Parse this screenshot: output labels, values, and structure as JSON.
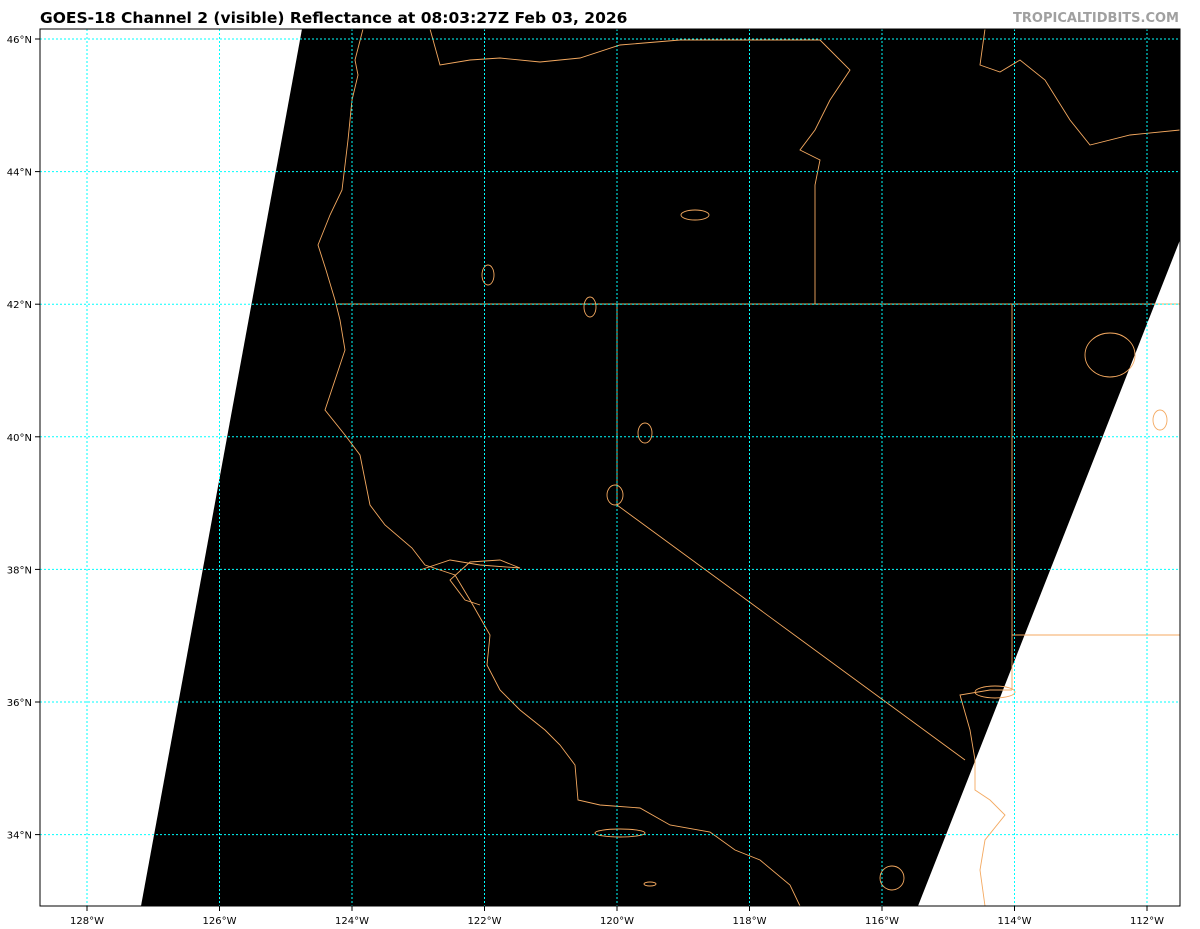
{
  "title": "GOES-18 Channel 2 (visible) Reflectance at 08:03:27Z Feb 03, 2026",
  "credit": "TROPICALTIDBITS.COM",
  "map": {
    "lon_ticks": [
      {
        "value": -128,
        "label": "128°W"
      },
      {
        "value": -126,
        "label": "126°W"
      },
      {
        "value": -124,
        "label": "124°W"
      },
      {
        "value": -122,
        "label": "122°W"
      },
      {
        "value": -120,
        "label": "120°W"
      },
      {
        "value": -118,
        "label": "118°W"
      },
      {
        "value": -116,
        "label": "116°W"
      },
      {
        "value": -114,
        "label": "114°W"
      },
      {
        "value": -112,
        "label": "112°W"
      }
    ],
    "lat_ticks": [
      {
        "value": 46,
        "label": "46°N"
      },
      {
        "value": 44,
        "label": "44°N"
      },
      {
        "value": 42,
        "label": "42°N"
      },
      {
        "value": 40,
        "label": "40°N"
      },
      {
        "value": 38,
        "label": "38°N"
      },
      {
        "value": 36,
        "label": "36°N"
      },
      {
        "value": 34,
        "label": "34°N"
      }
    ],
    "extent": {
      "lon": [
        -128.7,
        -111.5
      ],
      "lat": [
        32.9,
        46.15
      ]
    },
    "colors": {
      "imagery": "#000000",
      "no_data": "#ffffff",
      "coastline": "#f4a960",
      "gridlines": "#00ffff"
    }
  }
}
